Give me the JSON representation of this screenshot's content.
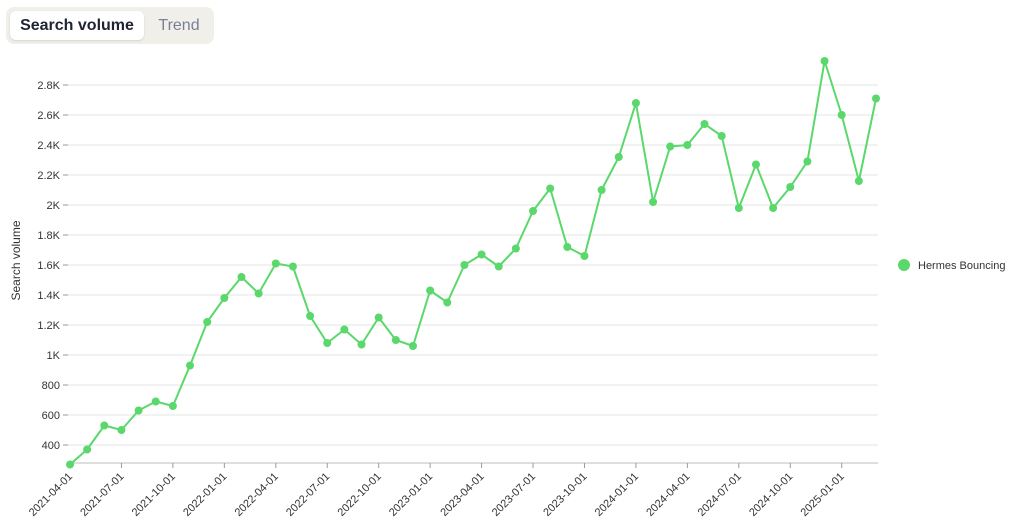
{
  "tabs": [
    {
      "label": "Search volume",
      "active": true
    },
    {
      "label": "Trend",
      "active": false
    }
  ],
  "colors": {
    "series": "#5ad86c",
    "tab_bg": "#f1efea"
  },
  "chart_data": {
    "type": "line",
    "ylabel": "Search volume",
    "ylim": [
      280,
      2980
    ],
    "yticks": [
      400,
      600,
      800,
      1000,
      1200,
      1400,
      1600,
      1800,
      2000,
      2200,
      2400,
      2600,
      2800
    ],
    "ytick_labels": [
      "400",
      "600",
      "800",
      "1K",
      "1.2K",
      "1.4K",
      "1.6K",
      "1.8K",
      "2K",
      "2.2K",
      "2.4K",
      "2.6K",
      "2.8K"
    ],
    "xticks": [
      "2021-04-01",
      "2021-07-01",
      "2021-10-01",
      "2022-01-01",
      "2022-04-01",
      "2022-07-01",
      "2022-10-01",
      "2023-01-01",
      "2023-04-01",
      "2023-07-01",
      "2023-10-01",
      "2024-01-01",
      "2024-04-01",
      "2024-07-01",
      "2024-10-01",
      "2025-01-01"
    ],
    "grid": true,
    "legend_position": "right",
    "series": [
      {
        "name": "Hermes Bouncing",
        "x": [
          "2021-04-01",
          "2021-05-01",
          "2021-06-01",
          "2021-07-01",
          "2021-08-01",
          "2021-09-01",
          "2021-10-01",
          "2021-11-01",
          "2021-12-01",
          "2022-01-01",
          "2022-02-01",
          "2022-03-01",
          "2022-04-01",
          "2022-05-01",
          "2022-06-01",
          "2022-07-01",
          "2022-08-01",
          "2022-09-01",
          "2022-10-01",
          "2022-11-01",
          "2022-12-01",
          "2023-01-01",
          "2023-02-01",
          "2023-03-01",
          "2023-04-01",
          "2023-05-01",
          "2023-06-01",
          "2023-07-01",
          "2023-08-01",
          "2023-09-01",
          "2023-10-01",
          "2023-11-01",
          "2023-12-01",
          "2024-01-01",
          "2024-02-01",
          "2024-03-01",
          "2024-04-01",
          "2024-05-01",
          "2024-06-01",
          "2024-07-01",
          "2024-08-01",
          "2024-09-01",
          "2024-10-01",
          "2024-11-01",
          "2024-12-01",
          "2025-01-01",
          "2025-02-01",
          "2025-03-01"
        ],
        "values": [
          270,
          370,
          530,
          500,
          630,
          690,
          660,
          930,
          1220,
          1380,
          1520,
          1410,
          1610,
          1590,
          1260,
          1080,
          1170,
          1070,
          1250,
          1100,
          1060,
          1430,
          1350,
          1600,
          1670,
          1590,
          1710,
          1960,
          2110,
          1720,
          1660,
          2100,
          2320,
          2680,
          2020,
          2390,
          2400,
          2540,
          2460,
          1980,
          2270,
          1980,
          2120,
          2290,
          2960,
          2600,
          2160,
          2710
        ]
      }
    ]
  }
}
